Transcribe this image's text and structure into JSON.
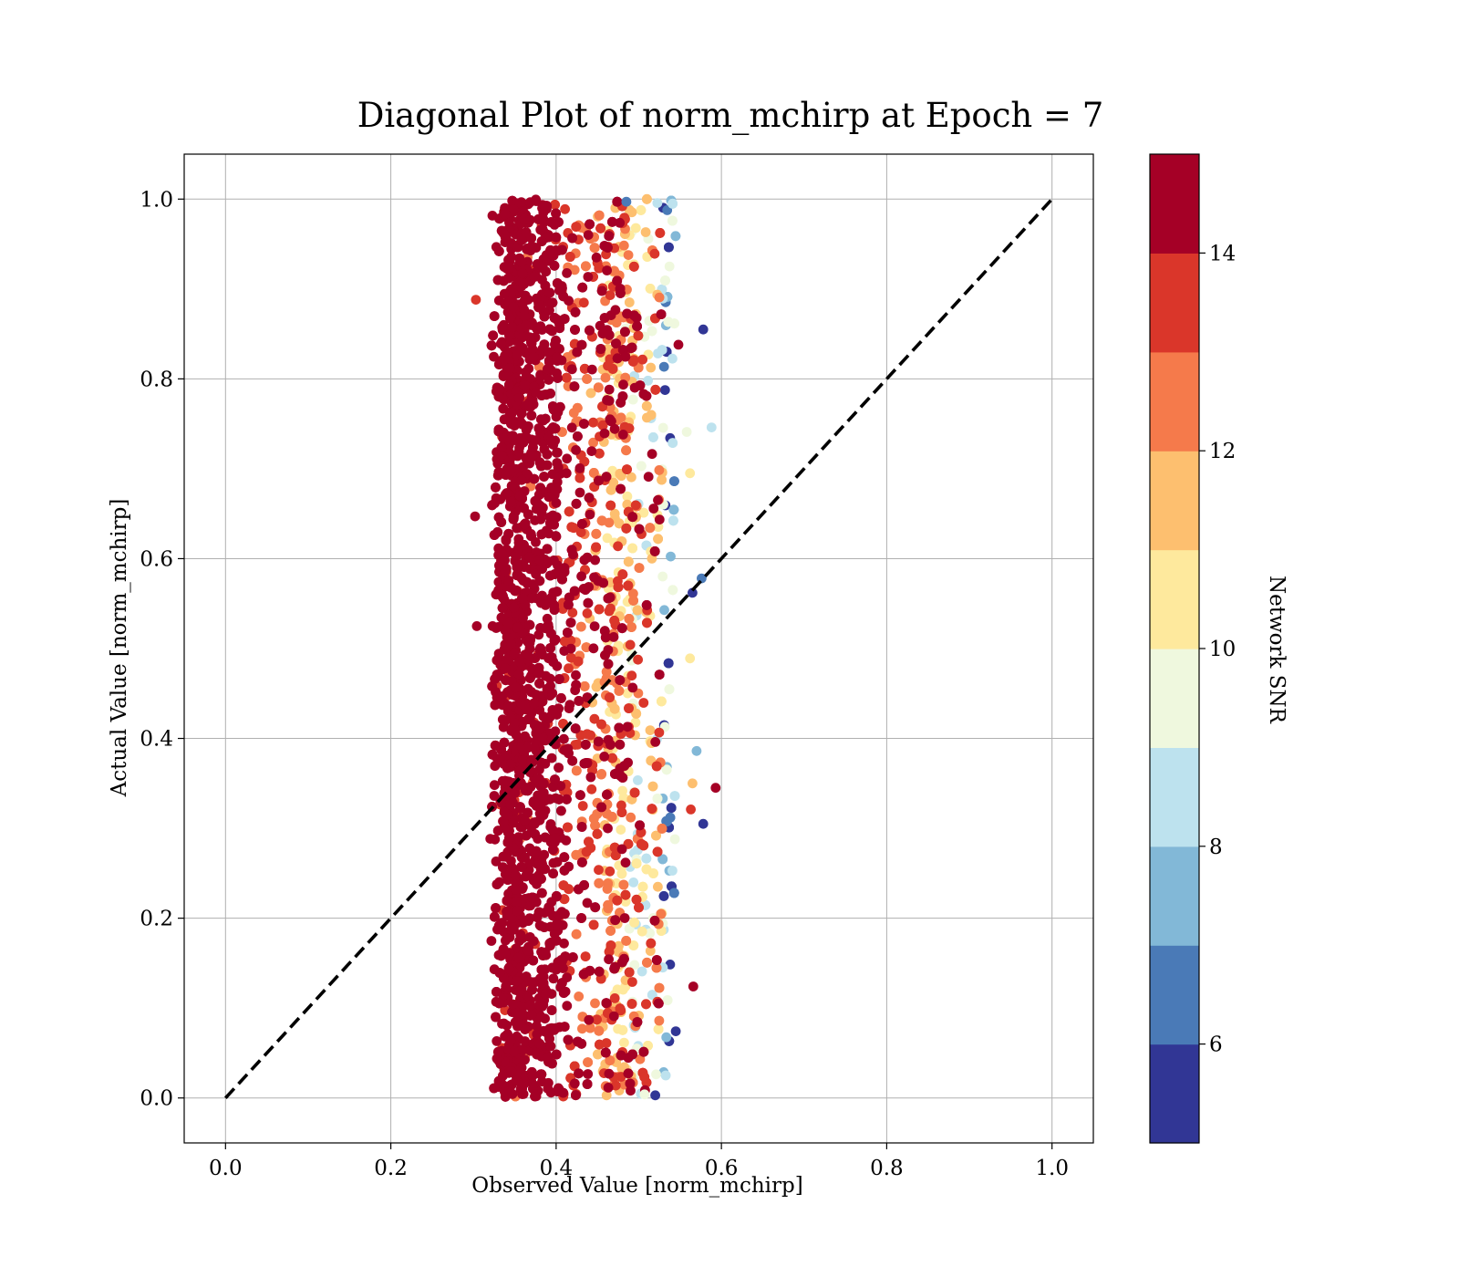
{
  "chart_data": {
    "type": "scatter",
    "title": "Diagonal Plot of norm_mchirp at Epoch = 7",
    "xlabel": "Observed Value [norm_mchirp]",
    "ylabel": "Actual Value [norm_mchirp]",
    "xlim": [
      -0.05,
      1.05
    ],
    "ylim": [
      -0.05,
      1.05
    ],
    "xticks": [
      "0.0",
      "0.2",
      "0.4",
      "0.6",
      "0.8",
      "1.0"
    ],
    "yticks": [
      "0.0",
      "0.2",
      "0.4",
      "0.6",
      "0.8",
      "1.0"
    ],
    "grid": true,
    "reference_line": {
      "style": "dashed",
      "color": "#000000",
      "from": [
        0.0,
        0.0
      ],
      "to": [
        1.0,
        1.0
      ]
    },
    "point_cloud": {
      "x_range": [
        0.3,
        0.59
      ],
      "y_range": [
        0.0,
        1.0
      ],
      "x_center": 0.38,
      "color_by": "Network SNR",
      "description_note": "dense cloud; low-x points mostly high SNR, right edge near x=0.54 mostly low SNR"
    },
    "outliers": [
      {
        "x": 0.578,
        "y": 0.855,
        "snr": 5.2
      },
      {
        "x": 0.588,
        "y": 0.746,
        "snr": 8.5
      },
      {
        "x": 0.57,
        "y": 0.386,
        "snr": 7.5
      },
      {
        "x": 0.593,
        "y": 0.345,
        "snr": 14.5
      },
      {
        "x": 0.578,
        "y": 0.305,
        "snr": 5.3
      },
      {
        "x": 0.565,
        "y": 0.562,
        "snr": 5.5
      },
      {
        "x": 0.576,
        "y": 0.578,
        "snr": 6.5
      },
      {
        "x": 0.566,
        "y": 0.124,
        "snr": 14.5
      },
      {
        "x": 0.548,
        "y": 0.838,
        "snr": 14.5
      },
      {
        "x": 0.565,
        "y": 0.35,
        "snr": 11.5
      },
      {
        "x": 0.563,
        "y": 0.321,
        "snr": 13.0
      },
      {
        "x": 0.562,
        "y": 0.695,
        "snr": 10.5
      },
      {
        "x": 0.562,
        "y": 0.489,
        "snr": 10.5
      },
      {
        "x": 0.558,
        "y": 0.741,
        "snr": 9.5
      },
      {
        "x": 0.302,
        "y": 0.647,
        "snr": 14.0
      },
      {
        "x": 0.304,
        "y": 0.525,
        "snr": 14.5
      },
      {
        "x": 0.303,
        "y": 0.888,
        "snr": 13.0
      },
      {
        "x": 0.376,
        "y": 0.002,
        "snr": 14.5
      },
      {
        "x": 0.507,
        "y": 0.004,
        "snr": 9.0
      },
      {
        "x": 0.485,
        "y": 0.997,
        "snr": 6.5
      },
      {
        "x": 0.52,
        "y": 0.003,
        "snr": 5.5
      }
    ],
    "colorbar": {
      "label": "Network SNR",
      "range": [
        5,
        15
      ],
      "ticks": [
        "6",
        "8",
        "10",
        "12",
        "14"
      ],
      "tick_values": [
        6,
        8,
        10,
        12,
        14
      ],
      "bins": [
        {
          "from": 5,
          "to": 6,
          "color": "#313695"
        },
        {
          "from": 6,
          "to": 7,
          "color": "#4a7ab7"
        },
        {
          "from": 7,
          "to": 8,
          "color": "#82b8d7"
        },
        {
          "from": 8,
          "to": 9,
          "color": "#bde2ee"
        },
        {
          "from": 9,
          "to": 10,
          "color": "#eff8de"
        },
        {
          "from": 10,
          "to": 11,
          "color": "#fee99d"
        },
        {
          "from": 11,
          "to": 12,
          "color": "#fdbf6f"
        },
        {
          "from": 12,
          "to": 13,
          "color": "#f57a4b"
        },
        {
          "from": 13,
          "to": 14,
          "color": "#da362a"
        },
        {
          "from": 14,
          "to": 15,
          "color": "#a50026"
        }
      ]
    }
  }
}
